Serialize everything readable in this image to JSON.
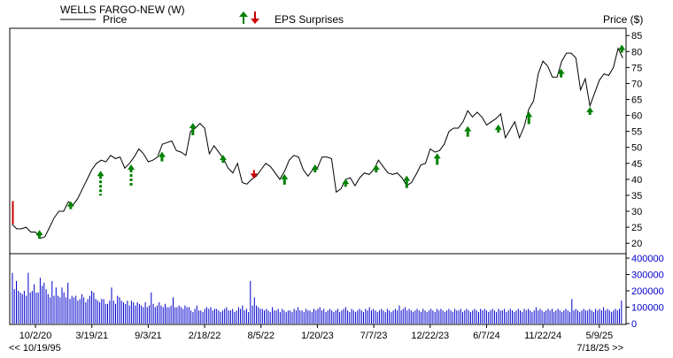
{
  "header": {
    "title": "WELLS FARGO-NEW (W)",
    "price_legend": "Price",
    "eps_legend": "EPS Surprises",
    "price_axis_label": "Price ($)"
  },
  "footer": {
    "start_date": "<< 10/19/95",
    "end_date": "7/18/25 >>"
  },
  "colors": {
    "price_line": "#000000",
    "up_arrow": "#008000",
    "down_arrow": "#cc0000",
    "volume_bars": "#0000cc",
    "axis_text": "#0000cc"
  },
  "chart_data": {
    "type": "line",
    "x_tick_labels": [
      "10/2/20",
      "3/19/21",
      "9/3/21",
      "2/18/22",
      "8/5/22",
      "1/20/23",
      "7/7/23",
      "12/22/23",
      "6/7/24",
      "11/22/24",
      "5/9/25"
    ],
    "price_axis": {
      "ticks": [
        20,
        25,
        30,
        35,
        40,
        45,
        50,
        55,
        60,
        65,
        70,
        75,
        80,
        85
      ],
      "ylim": [
        17,
        87
      ]
    },
    "volume_axis": {
      "ticks": [
        0,
        100000,
        200000,
        300000,
        400000
      ],
      "tick_labels": [
        "0",
        "100000",
        "200000",
        "300000",
        "400000"
      ],
      "ylim": [
        0,
        400000
      ]
    },
    "price": [
      [
        "2020-07-24",
        26
      ],
      [
        "2020-08-07",
        24.5
      ],
      [
        "2020-08-21",
        24.5
      ],
      [
        "2020-09-04",
        25
      ],
      [
        "2020-09-18",
        23.5
      ],
      [
        "2020-10-02",
        23.5
      ],
      [
        "2020-10-16",
        21.5
      ],
      [
        "2020-10-30",
        22
      ],
      [
        "2020-11-13",
        25
      ],
      [
        "2020-11-27",
        28
      ],
      [
        "2020-12-11",
        30
      ],
      [
        "2020-12-25",
        30
      ],
      [
        "2021-01-08",
        33
      ],
      [
        "2021-01-22",
        32
      ],
      [
        "2021-02-05",
        34
      ],
      [
        "2021-02-19",
        37
      ],
      [
        "2021-03-05",
        40
      ],
      [
        "2021-03-19",
        43
      ],
      [
        "2021-04-02",
        45
      ],
      [
        "2021-04-16",
        46
      ],
      [
        "2021-04-30",
        45.5
      ],
      [
        "2021-05-14",
        47.5
      ],
      [
        "2021-05-28",
        46.5
      ],
      [
        "2021-06-11",
        47
      ],
      [
        "2021-06-25",
        43.5
      ],
      [
        "2021-07-09",
        45
      ],
      [
        "2021-07-23",
        47
      ],
      [
        "2021-08-06",
        49.5
      ],
      [
        "2021-08-20",
        48
      ],
      [
        "2021-09-03",
        45.5
      ],
      [
        "2021-09-17",
        46
      ],
      [
        "2021-10-01",
        47
      ],
      [
        "2021-10-15",
        51
      ],
      [
        "2021-10-29",
        51.5
      ],
      [
        "2021-11-12",
        52
      ],
      [
        "2021-11-26",
        49
      ],
      [
        "2021-12-10",
        48.5
      ],
      [
        "2021-12-24",
        47.5
      ],
      [
        "2022-01-07",
        55
      ],
      [
        "2022-01-21",
        56
      ],
      [
        "2022-02-04",
        57.5
      ],
      [
        "2022-02-18",
        56
      ],
      [
        "2022-03-04",
        48
      ],
      [
        "2022-03-18",
        50.5
      ],
      [
        "2022-04-01",
        48.5
      ],
      [
        "2022-04-15",
        46.5
      ],
      [
        "2022-04-29",
        43.5
      ],
      [
        "2022-05-13",
        42
      ],
      [
        "2022-05-27",
        45
      ],
      [
        "2022-06-10",
        39
      ],
      [
        "2022-06-24",
        38.5
      ],
      [
        "2022-07-08",
        40
      ],
      [
        "2022-07-22",
        41
      ],
      [
        "2022-08-05",
        43
      ],
      [
        "2022-08-19",
        45
      ],
      [
        "2022-09-02",
        44
      ],
      [
        "2022-09-16",
        42
      ],
      [
        "2022-09-30",
        40
      ],
      [
        "2022-10-14",
        42.5
      ],
      [
        "2022-10-28",
        46
      ],
      [
        "2022-11-11",
        47.5
      ],
      [
        "2022-11-25",
        47
      ],
      [
        "2022-12-09",
        43
      ],
      [
        "2022-12-23",
        41
      ],
      [
        "2023-01-06",
        43
      ],
      [
        "2023-01-20",
        43.5
      ],
      [
        "2023-02-03",
        47
      ],
      [
        "2023-02-17",
        47
      ],
      [
        "2023-03-03",
        46.5
      ],
      [
        "2023-03-17",
        36
      ],
      [
        "2023-03-31",
        37
      ],
      [
        "2023-04-14",
        40
      ],
      [
        "2023-04-28",
        40.5
      ],
      [
        "2023-05-12",
        38
      ],
      [
        "2023-05-26",
        40.5
      ],
      [
        "2023-06-09",
        42
      ],
      [
        "2023-06-23",
        41.5
      ],
      [
        "2023-07-07",
        43
      ],
      [
        "2023-07-21",
        46
      ],
      [
        "2023-08-04",
        44
      ],
      [
        "2023-08-18",
        42
      ],
      [
        "2023-09-01",
        41.5
      ],
      [
        "2023-09-15",
        42
      ],
      [
        "2023-09-29",
        40.5
      ],
      [
        "2023-10-13",
        38
      ],
      [
        "2023-10-27",
        39
      ],
      [
        "2023-11-10",
        41.5
      ],
      [
        "2023-11-24",
        44.5
      ],
      [
        "2023-12-08",
        45
      ],
      [
        "2023-12-22",
        49.5
      ],
      [
        "2024-01-05",
        48.5
      ],
      [
        "2024-01-19",
        49
      ],
      [
        "2024-02-02",
        51
      ],
      [
        "2024-02-16",
        55
      ],
      [
        "2024-03-01",
        56
      ],
      [
        "2024-03-15",
        56
      ],
      [
        "2024-03-29",
        58
      ],
      [
        "2024-04-12",
        61.5
      ],
      [
        "2024-04-26",
        59.5
      ],
      [
        "2024-05-10",
        61
      ],
      [
        "2024-05-24",
        59.5
      ],
      [
        "2024-06-07",
        57
      ],
      [
        "2024-06-21",
        58
      ],
      [
        "2024-07-05",
        59
      ],
      [
        "2024-07-19",
        60.5
      ],
      [
        "2024-08-02",
        53
      ],
      [
        "2024-08-16",
        55.5
      ],
      [
        "2024-08-30",
        58
      ],
      [
        "2024-09-13",
        53
      ],
      [
        "2024-09-27",
        56.5
      ],
      [
        "2024-10-11",
        62
      ],
      [
        "2024-10-25",
        64.5
      ],
      [
        "2024-11-08",
        73
      ],
      [
        "2024-11-22",
        77
      ],
      [
        "2024-12-06",
        75.5
      ],
      [
        "2024-12-20",
        72
      ],
      [
        "2025-01-03",
        72
      ],
      [
        "2025-01-17",
        77
      ],
      [
        "2025-01-31",
        79.5
      ],
      [
        "2025-02-14",
        79.5
      ],
      [
        "2025-02-28",
        78
      ],
      [
        "2025-03-14",
        68
      ],
      [
        "2025-03-28",
        71.5
      ],
      [
        "2025-04-11",
        63
      ],
      [
        "2025-04-25",
        67
      ],
      [
        "2025-05-09",
        71
      ],
      [
        "2025-05-23",
        73
      ],
      [
        "2025-06-06",
        72.5
      ],
      [
        "2025-06-20",
        75
      ],
      [
        "2025-07-04",
        81
      ],
      [
        "2025-07-18",
        78
      ]
    ],
    "eps_surprises": [
      {
        "date": "2020-10-14",
        "price": 22.5,
        "direction": "up",
        "bar": 4
      },
      {
        "date": "2021-01-15",
        "price": 31.5,
        "direction": "up",
        "bar": 2
      },
      {
        "date": "2021-04-14",
        "price": 41,
        "direction": "up",
        "bar": 22
      },
      {
        "date": "2021-07-14",
        "price": 43,
        "direction": "up",
        "bar": 18
      },
      {
        "date": "2021-10-14",
        "price": 47,
        "direction": "up",
        "bar": 5
      },
      {
        "date": "2022-01-14",
        "price": 56,
        "direction": "up",
        "bar": 8
      },
      {
        "date": "2022-04-14",
        "price": 46,
        "direction": "up",
        "bar": 2
      },
      {
        "date": "2022-07-15",
        "price": 41,
        "direction": "down",
        "bar": 2
      },
      {
        "date": "2022-10-14",
        "price": 40,
        "direction": "up",
        "bar": 6
      },
      {
        "date": "2023-01-13",
        "price": 43,
        "direction": "up",
        "bar": 2
      },
      {
        "date": "2023-04-14",
        "price": 38.5,
        "direction": "up",
        "bar": 2
      },
      {
        "date": "2023-07-14",
        "price": 43,
        "direction": "up",
        "bar": 2
      },
      {
        "date": "2023-10-13",
        "price": 39.5,
        "direction": "up",
        "bar": 8
      },
      {
        "date": "2024-01-12",
        "price": 46.5,
        "direction": "up",
        "bar": 7
      },
      {
        "date": "2024-04-12",
        "price": 55,
        "direction": "up",
        "bar": 6
      },
      {
        "date": "2024-07-12",
        "price": 55.5,
        "direction": "up",
        "bar": 2
      },
      {
        "date": "2024-10-11",
        "price": 59.5,
        "direction": "up",
        "bar": 8
      },
      {
        "date": "2025-01-15",
        "price": 73,
        "direction": "up",
        "bar": 4
      },
      {
        "date": "2025-04-11",
        "price": 61,
        "direction": "up",
        "bar": 2
      },
      {
        "date": "2025-07-15",
        "price": 80.5,
        "direction": "up",
        "bar": 2
      }
    ],
    "volume_weekly": [
      310000,
      210000,
      260000,
      200000,
      190000,
      180000,
      200000,
      170000,
      310000,
      190000,
      200000,
      240000,
      190000,
      190000,
      280000,
      230000,
      250000,
      210000,
      180000,
      160000,
      260000,
      170000,
      220000,
      170000,
      160000,
      220000,
      190000,
      160000,
      250000,
      150000,
      170000,
      160000,
      170000,
      140000,
      150000,
      180000,
      160000,
      130000,
      150000,
      170000,
      200000,
      190000,
      150000,
      140000,
      130000,
      150000,
      150000,
      120000,
      120000,
      140000,
      220000,
      140000,
      120000,
      170000,
      160000,
      140000,
      130000,
      120000,
      140000,
      110000,
      140000,
      130000,
      110000,
      130000,
      120000,
      110000,
      100000,
      130000,
      100000,
      110000,
      190000,
      120000,
      100000,
      110000,
      130000,
      110000,
      100000,
      120000,
      100000,
      100000,
      110000,
      160000,
      100000,
      100000,
      110000,
      100000,
      90000,
      110000,
      100000,
      100000,
      80000,
      70000,
      90000,
      110000,
      80000,
      80000,
      70000,
      90000,
      100000,
      90000,
      100000,
      80000,
      90000,
      90000,
      80000,
      70000,
      80000,
      90000,
      100000,
      80000,
      80000,
      90000,
      70000,
      80000,
      100000,
      90000,
      110000,
      80000,
      90000,
      70000,
      260000,
      110000,
      160000,
      110000,
      100000,
      90000,
      90000,
      80000,
      90000,
      80000,
      70000,
      100000,
      80000,
      80000,
      90000,
      70000,
      90000,
      80000,
      70000,
      80000,
      80000,
      70000,
      90000,
      80000,
      100000,
      80000,
      80000,
      70000,
      90000,
      80000,
      80000,
      70000,
      90000,
      80000,
      90000,
      100000,
      80000,
      90000,
      70000,
      80000,
      90000,
      80000,
      70000,
      80000,
      90000,
      70000,
      80000,
      90000,
      100000,
      80000,
      70000,
      90000,
      80000,
      70000,
      80000,
      90000,
      80000,
      70000,
      90000,
      80000,
      100000,
      80000,
      90000,
      80000,
      70000,
      80000,
      90000,
      80000,
      70000,
      90000,
      80000,
      70000,
      80000,
      90000,
      80000,
      110000,
      80000,
      90000,
      100000,
      80000,
      90000,
      80000,
      70000,
      80000,
      90000,
      80000,
      70000,
      90000,
      80000,
      70000,
      80000,
      90000,
      80000,
      70000,
      90000,
      80000,
      90000,
      80000,
      70000,
      80000,
      90000,
      80000,
      70000,
      90000,
      80000,
      80000,
      90000,
      70000,
      80000,
      90000,
      80000,
      70000,
      80000,
      90000,
      80000,
      70000,
      90000,
      80000,
      90000,
      80000,
      70000,
      80000,
      90000,
      80000,
      70000,
      90000,
      80000,
      80000,
      90000,
      70000,
      80000,
      90000,
      80000,
      70000,
      80000,
      90000,
      80000,
      70000,
      90000,
      80000,
      90000,
      80000,
      70000,
      80000,
      100000,
      80000,
      90000,
      80000,
      70000,
      80000,
      90000,
      80000,
      90000,
      70000,
      80000,
      90000,
      80000,
      70000,
      80000,
      90000,
      80000,
      70000,
      150000,
      80000,
      90000,
      80000,
      70000,
      80000,
      90000,
      80000,
      80000,
      90000,
      80000,
      70000,
      90000,
      80000,
      90000,
      80000,
      100000,
      80000,
      90000,
      80000,
      70000,
      80000,
      90000,
      80000,
      90000,
      140000
    ]
  }
}
